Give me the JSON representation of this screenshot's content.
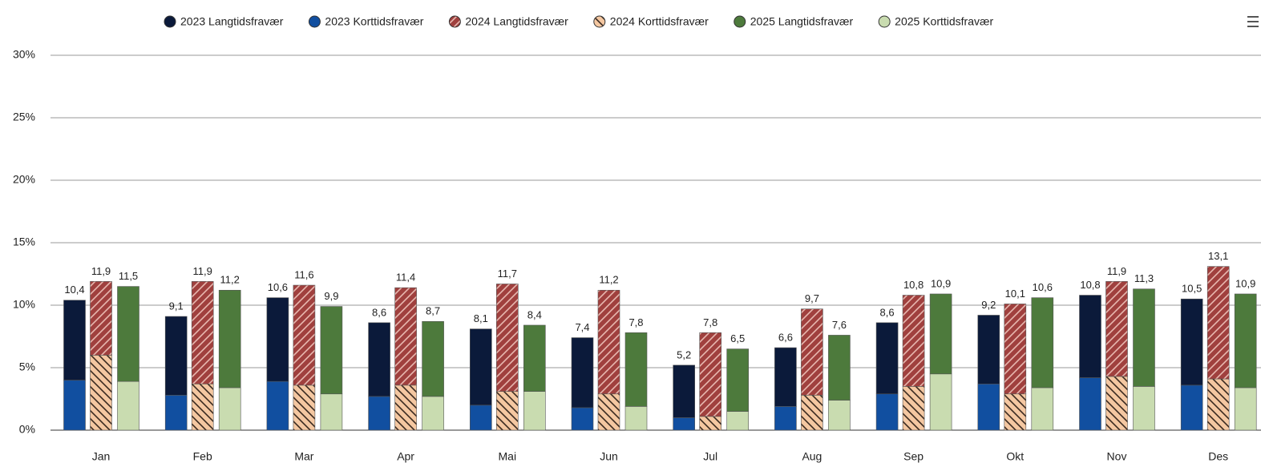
{
  "chart_data": {
    "type": "grouped-stacked-bar",
    "categories": [
      "Jan",
      "Feb",
      "Mar",
      "Apr",
      "Mai",
      "Jun",
      "Jul",
      "Aug",
      "Sep",
      "Okt",
      "Nov",
      "Des"
    ],
    "ylim": [
      0,
      30
    ],
    "yticks": [
      {
        "value": 0,
        "label": "0%"
      },
      {
        "value": 5,
        "label": "5%"
      },
      {
        "value": 10,
        "label": "10%"
      },
      {
        "value": 15,
        "label": "15%"
      },
      {
        "value": 20,
        "label": "20%"
      },
      {
        "value": 25,
        "label": "25%"
      },
      {
        "value": 30,
        "label": "30%"
      }
    ],
    "grid": true,
    "legend": "top",
    "groups": [
      {
        "series": [
          {
            "name": "2023 Korttidsfravær",
            "color": "#114fa0",
            "values": [
              4.0,
              2.8,
              3.9,
              2.7,
              2.0,
              1.8,
              1.0,
              1.9,
              2.9,
              3.7,
              4.2,
              3.6
            ]
          },
          {
            "name": "2023 Langtidsfravær",
            "color": "#0b1a3a",
            "values": [
              6.4,
              6.3,
              6.7,
              5.9,
              6.1,
              5.6,
              4.2,
              4.7,
              5.7,
              5.5,
              6.6,
              6.9
            ]
          }
        ],
        "totals": [
          10.4,
          9.1,
          10.6,
          8.6,
          8.1,
          7.4,
          5.2,
          6.6,
          8.6,
          9.2,
          10.8,
          10.5
        ],
        "total_labels": [
          "10,4",
          "9,1",
          "10,6",
          "8,6",
          "8,1",
          "7,4",
          "5,2",
          "6,6",
          "8,6",
          "9,2",
          "10,8",
          "10,5"
        ]
      },
      {
        "series": [
          {
            "name": "2024 Korttidsfravær",
            "color": "#f4c7a1",
            "hatch": "#3a2a20",
            "values": [
              6.0,
              3.7,
              3.6,
              3.6,
              3.1,
              2.9,
              1.1,
              2.8,
              3.5,
              2.9,
              4.3,
              4.1
            ]
          },
          {
            "name": "2024 Langtidsfravær",
            "color": "#a0403e",
            "hatch": "#e8b8b0",
            "values": [
              5.9,
              8.2,
              8.0,
              7.8,
              8.6,
              8.3,
              6.7,
              6.9,
              7.3,
              7.2,
              7.6,
              9.0
            ]
          }
        ],
        "totals": [
          11.9,
          11.9,
          11.6,
          11.4,
          11.7,
          11.2,
          7.8,
          9.7,
          10.8,
          10.1,
          11.9,
          13.1
        ],
        "total_labels": [
          "11,9",
          "11,9",
          "11,6",
          "11,4",
          "11,7",
          "11,2",
          "7,8",
          "9,7",
          "10,8",
          "10,1",
          "11,9",
          "13,1"
        ]
      },
      {
        "series": [
          {
            "name": "2025 Korttidsfravær",
            "color": "#c9dcb0",
            "values": [
              3.9,
              3.4,
              2.9,
              2.7,
              3.1,
              1.9,
              1.5,
              2.4,
              4.5,
              3.4,
              3.5,
              3.4
            ]
          },
          {
            "name": "2025 Langtidsfravær",
            "color": "#4d7a3c",
            "values": [
              7.6,
              7.8,
              7.0,
              6.0,
              5.3,
              5.9,
              5.0,
              5.2,
              6.4,
              7.2,
              7.8,
              7.5
            ]
          }
        ],
        "totals": [
          11.5,
          11.2,
          9.9,
          8.7,
          8.4,
          7.8,
          6.5,
          7.6,
          10.9,
          10.6,
          11.3,
          10.9
        ],
        "total_labels": [
          "11,5",
          "11,2",
          "9,9",
          "8,7",
          "8,4",
          "7,8",
          "6,5",
          "7,6",
          "10,9",
          "10,6",
          "11,3",
          "10,9"
        ]
      }
    ]
  }
}
